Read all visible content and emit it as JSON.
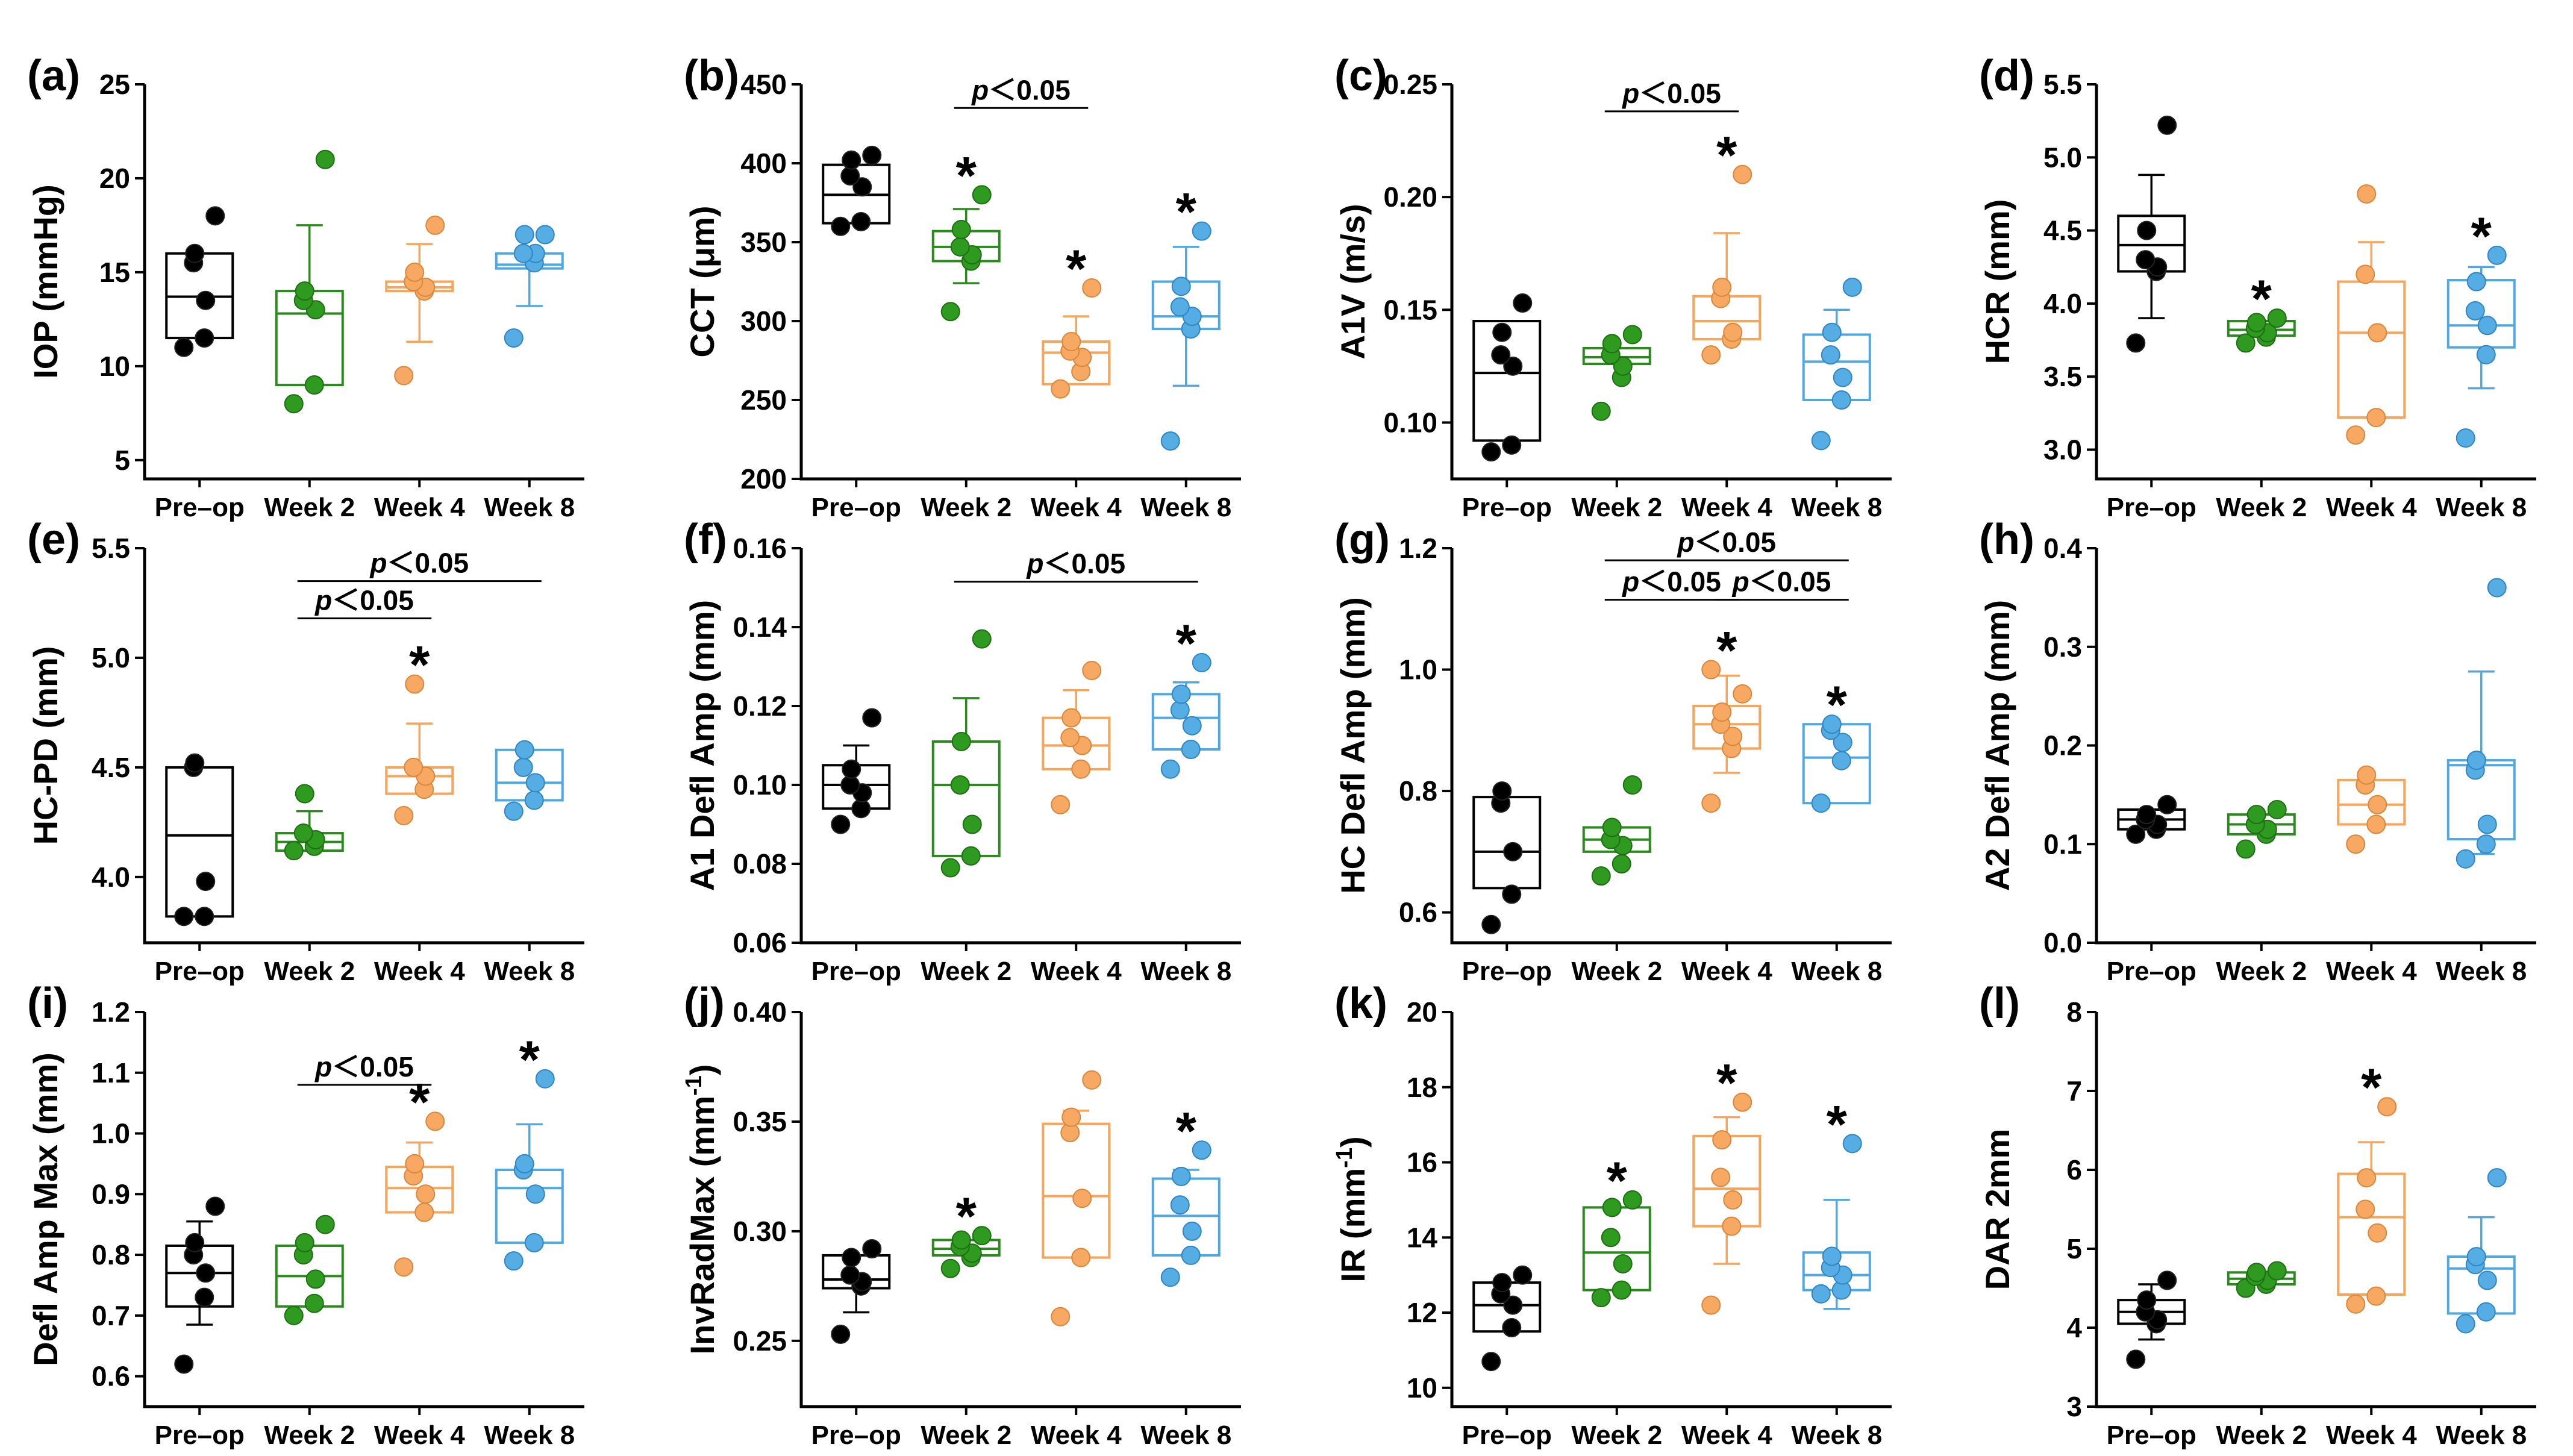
{
  "chart_data": [
    {
      "panel": "(a)",
      "type": "box",
      "ylabel": "IOP (mmHg)",
      "ylim": [
        4,
        25
      ],
      "yticks": [
        5,
        10,
        15,
        20,
        25
      ],
      "categories": [
        "Pre–op",
        "Week 2",
        "Week 4",
        "Week 8"
      ],
      "boxes": [
        {
          "q1": 11.5,
          "median": 13.7,
          "q3": 16.0,
          "wl": null,
          "wh": null
        },
        {
          "q1": 9.0,
          "median": 12.8,
          "q3": 14.0,
          "wl": null,
          "wh": 17.5
        },
        {
          "q1": 14.0,
          "median": 14.2,
          "q3": 14.5,
          "wl": 11.3,
          "wh": 16.5
        },
        {
          "q1": 15.2,
          "median": 15.4,
          "q3": 16.0,
          "wl": 13.2,
          "wh": null
        }
      ],
      "points": [
        [
          11,
          11.5,
          13.5,
          15.5,
          16,
          18
        ],
        [
          8,
          9,
          13,
          13.5,
          14,
          21
        ],
        [
          9.5,
          14,
          14.2,
          14.5,
          15,
          17.5
        ],
        [
          11.5,
          15.5,
          16,
          16,
          17,
          17
        ]
      ],
      "stars": [],
      "sig": []
    },
    {
      "panel": "(b)",
      "type": "box",
      "ylabel": "CCT (μm)",
      "ylim": [
        200,
        450
      ],
      "yticks": [
        200,
        250,
        300,
        350,
        400,
        450
      ],
      "categories": [
        "Pre–op",
        "Week 2",
        "Week 4",
        "Week 8"
      ],
      "boxes": [
        {
          "q1": 362,
          "median": 380,
          "q3": 399,
          "wl": null,
          "wh": null
        },
        {
          "q1": 338,
          "median": 347,
          "q3": 357,
          "wl": 324,
          "wh": 371
        },
        {
          "q1": 260,
          "median": 280,
          "q3": 287,
          "wl": null,
          "wh": 303
        },
        {
          "q1": 295,
          "median": 303,
          "q3": 325,
          "wl": 259,
          "wh": 347
        }
      ],
      "points": [
        [
          360,
          363,
          385,
          392,
          402,
          405
        ],
        [
          306,
          338,
          342,
          347,
          358,
          380
        ],
        [
          257,
          268,
          277,
          281,
          287,
          321
        ],
        [
          224,
          295,
          303,
          309,
          322,
          357
        ]
      ],
      "stars": [
        1,
        2,
        3
      ],
      "sig": [
        {
          "from": 1,
          "to": 2,
          "y": 435,
          "label": "p",
          "rest": "＜0.05"
        }
      ]
    },
    {
      "panel": "(c)",
      "type": "box",
      "ylabel": "A1V (m/s)",
      "ylim": [
        0.075,
        0.25
      ],
      "yticks": [
        0.1,
        0.15,
        0.2,
        0.25
      ],
      "categories": [
        "Pre–op",
        "Week 2",
        "Week 4",
        "Week 8"
      ],
      "boxes": [
        {
          "q1": 0.092,
          "median": 0.122,
          "q3": 0.145,
          "wl": null,
          "wh": null
        },
        {
          "q1": 0.126,
          "median": 0.129,
          "q3": 0.133,
          "wl": null,
          "wh": null
        },
        {
          "q1": 0.137,
          "median": 0.145,
          "q3": 0.156,
          "wl": null,
          "wh": 0.184
        },
        {
          "q1": 0.11,
          "median": 0.127,
          "q3": 0.139,
          "wl": null,
          "wh": 0.15
        }
      ],
      "points": [
        [
          0.087,
          0.09,
          0.125,
          0.13,
          0.14,
          0.153
        ],
        [
          0.105,
          0.12,
          0.125,
          0.13,
          0.135,
          0.139
        ],
        [
          0.13,
          0.137,
          0.14,
          0.155,
          0.16,
          0.21
        ],
        [
          0.092,
          0.11,
          0.12,
          0.13,
          0.14,
          0.16
        ]
      ],
      "stars": [
        2
      ],
      "sig": [
        {
          "from": 1,
          "to": 2,
          "y": 0.238,
          "label": "p",
          "rest": "＜0.05"
        }
      ]
    },
    {
      "panel": "(d)",
      "type": "box",
      "ylabel": "HCR (mm)",
      "ylim": [
        2.8,
        5.5
      ],
      "yticks": [
        3.0,
        3.5,
        4.0,
        4.5,
        5.0,
        5.5
      ],
      "categories": [
        "Pre–op",
        "Week 2",
        "Week 4",
        "Week 8"
      ],
      "boxes": [
        {
          "q1": 4.22,
          "median": 4.4,
          "q3": 4.6,
          "wl": 3.9,
          "wh": 4.88
        },
        {
          "q1": 3.78,
          "median": 3.82,
          "q3": 3.88,
          "wl": null,
          "wh": null
        },
        {
          "q1": 3.22,
          "median": 3.8,
          "q3": 4.15,
          "wl": null,
          "wh": 4.42
        },
        {
          "q1": 3.7,
          "median": 3.85,
          "q3": 4.16,
          "wl": 3.42,
          "wh": 4.25
        }
      ],
      "points": [
        [
          3.73,
          4.22,
          4.25,
          4.3,
          4.5,
          5.22
        ],
        [
          3.73,
          3.77,
          3.8,
          3.83,
          3.87,
          3.9
        ],
        [
          3.1,
          3.22,
          3.8,
          4.2,
          4.75
        ],
        [
          3.08,
          3.65,
          3.85,
          3.95,
          4.15,
          4.33
        ]
      ],
      "stars": [
        1,
        3
      ],
      "sig": []
    },
    {
      "panel": "(e)",
      "type": "box",
      "ylabel": "HC-PD (mm)",
      "ylim": [
        3.7,
        5.5
      ],
      "yticks": [
        4.0,
        4.5,
        5.0,
        5.5
      ],
      "categories": [
        "Pre–op",
        "Week 2",
        "Week 4",
        "Week 8"
      ],
      "boxes": [
        {
          "q1": 3.82,
          "median": 4.19,
          "q3": 4.5,
          "wl": null,
          "wh": null
        },
        {
          "q1": 4.12,
          "median": 4.16,
          "q3": 4.2,
          "wl": null,
          "wh": 4.3
        },
        {
          "q1": 4.38,
          "median": 4.46,
          "q3": 4.5,
          "wl": null,
          "wh": 4.7
        },
        {
          "q1": 4.35,
          "median": 4.43,
          "q3": 4.58,
          "wl": null,
          "wh": null
        }
      ],
      "points": [
        [
          3.82,
          3.82,
          3.98,
          4.5,
          4.52
        ],
        [
          4.12,
          4.14,
          4.17,
          4.2,
          4.38
        ],
        [
          4.28,
          4.4,
          4.46,
          4.5,
          4.88
        ],
        [
          4.3,
          4.35,
          4.43,
          4.5,
          4.58
        ]
      ],
      "stars": [
        2
      ],
      "sig": [
        {
          "from": 1,
          "to": 2,
          "y": 5.18,
          "label": "p",
          "rest": "＜0.05"
        },
        {
          "from": 1,
          "to": 3,
          "y": 5.35,
          "label": "p",
          "rest": "＜0.05"
        }
      ]
    },
    {
      "panel": "(f)",
      "type": "box",
      "ylabel": "A1 Defl Amp (mm)",
      "ylim": [
        0.06,
        0.16
      ],
      "yticks": [
        0.06,
        0.08,
        0.1,
        0.12,
        0.14,
        0.16
      ],
      "categories": [
        "Pre–op",
        "Week 2",
        "Week 4",
        "Week 8"
      ],
      "boxes": [
        {
          "q1": 0.094,
          "median": 0.1,
          "q3": 0.105,
          "wl": null,
          "wh": 0.11
        },
        {
          "q1": 0.082,
          "median": 0.1,
          "q3": 0.111,
          "wl": null,
          "wh": 0.122
        },
        {
          "q1": 0.104,
          "median": 0.11,
          "q3": 0.117,
          "wl": null,
          "wh": 0.124
        },
        {
          "q1": 0.109,
          "median": 0.117,
          "q3": 0.123,
          "wl": null,
          "wh": 0.126
        }
      ],
      "points": [
        [
          0.09,
          0.094,
          0.098,
          0.1,
          0.104,
          0.117
        ],
        [
          0.079,
          0.082,
          0.09,
          0.1,
          0.111,
          0.137
        ],
        [
          0.095,
          0.104,
          0.11,
          0.112,
          0.117,
          0.129
        ],
        [
          0.104,
          0.109,
          0.115,
          0.119,
          0.123,
          0.131
        ]
      ],
      "stars": [
        3
      ],
      "sig": [
        {
          "from": 1,
          "to": 3,
          "y": 0.1515,
          "label": "p",
          "rest": "＜0.05"
        }
      ]
    },
    {
      "panel": "(g)",
      "type": "box",
      "ylabel": "HC Defl Amp (mm)",
      "ylim": [
        0.55,
        1.2
      ],
      "yticks": [
        0.6,
        0.8,
        1.0,
        1.2
      ],
      "categories": [
        "Pre–op",
        "Week 2",
        "Week 4",
        "Week 8"
      ],
      "boxes": [
        {
          "q1": 0.64,
          "median": 0.7,
          "q3": 0.79,
          "wl": null,
          "wh": null
        },
        {
          "q1": 0.7,
          "median": 0.72,
          "q3": 0.74,
          "wl": null,
          "wh": null
        },
        {
          "q1": 0.87,
          "median": 0.91,
          "q3": 0.94,
          "wl": 0.83,
          "wh": 0.99
        },
        {
          "q1": 0.78,
          "median": 0.855,
          "q3": 0.91,
          "wl": null,
          "wh": null
        }
      ],
      "points": [
        [
          0.58,
          0.63,
          0.7,
          0.78,
          0.8
        ],
        [
          0.66,
          0.68,
          0.71,
          0.72,
          0.74,
          0.81
        ],
        [
          0.78,
          0.87,
          0.89,
          0.91,
          0.93,
          0.96,
          1.0
        ],
        [
          0.78,
          0.85,
          0.88,
          0.9,
          0.91
        ]
      ],
      "stars": [
        2,
        3
      ],
      "sig": [
        {
          "from": 1,
          "to": 2,
          "y": 1.115,
          "label": "p",
          "rest": "＜0.05"
        },
        {
          "from": 2,
          "to": 3,
          "y": 1.115,
          "label": "p",
          "rest": "＜0.05"
        },
        {
          "from": 1,
          "to": 3,
          "y": 1.18,
          "label": "p",
          "rest": "＜0.05"
        }
      ]
    },
    {
      "panel": "(h)",
      "type": "box",
      "ylabel": "A2 Defl Amp (mm)",
      "ylim": [
        0.0,
        0.4
      ],
      "yticks": [
        0.0,
        0.1,
        0.2,
        0.3,
        0.4
      ],
      "categories": [
        "Pre–op",
        "Week 2",
        "Week 4",
        "Week 8"
      ],
      "boxes": [
        {
          "q1": 0.115,
          "median": 0.125,
          "q3": 0.135,
          "wl": null,
          "wh": null
        },
        {
          "q1": 0.11,
          "median": 0.12,
          "q3": 0.13,
          "wl": null,
          "wh": null
        },
        {
          "q1": 0.12,
          "median": 0.14,
          "q3": 0.165,
          "wl": null,
          "wh": null
        },
        {
          "q1": 0.105,
          "median": 0.18,
          "q3": 0.185,
          "wl": 0.09,
          "wh": 0.275
        }
      ],
      "points": [
        [
          0.11,
          0.115,
          0.12,
          0.125,
          0.13,
          0.14
        ],
        [
          0.095,
          0.11,
          0.115,
          0.12,
          0.13,
          0.135
        ],
        [
          0.1,
          0.12,
          0.14,
          0.16,
          0.17
        ],
        [
          0.085,
          0.1,
          0.12,
          0.175,
          0.185,
          0.36
        ]
      ],
      "stars": [],
      "sig": []
    },
    {
      "panel": "(i)",
      "type": "box",
      "ylabel": "Defl Amp Max (mm)",
      "ylim": [
        0.55,
        1.2
      ],
      "yticks": [
        0.6,
        0.7,
        0.8,
        0.9,
        1.0,
        1.1,
        1.2
      ],
      "categories": [
        "Pre–op",
        "Week 2",
        "Week 4",
        "Week 8"
      ],
      "boxes": [
        {
          "q1": 0.715,
          "median": 0.77,
          "q3": 0.815,
          "wl": 0.685,
          "wh": 0.855
        },
        {
          "q1": 0.715,
          "median": 0.765,
          "q3": 0.815,
          "wl": null,
          "wh": null
        },
        {
          "q1": 0.87,
          "median": 0.91,
          "q3": 0.945,
          "wl": null,
          "wh": 0.985
        },
        {
          "q1": 0.82,
          "median": 0.91,
          "q3": 0.94,
          "wl": null,
          "wh": 1.015
        }
      ],
      "points": [
        [
          0.62,
          0.73,
          0.77,
          0.8,
          0.82,
          0.88
        ],
        [
          0.7,
          0.72,
          0.76,
          0.8,
          0.82,
          0.85
        ],
        [
          0.78,
          0.87,
          0.9,
          0.93,
          0.95,
          1.02
        ],
        [
          0.79,
          0.82,
          0.9,
          0.94,
          0.95,
          1.09
        ]
      ],
      "stars": [
        2,
        3
      ],
      "sig": [
        {
          "from": 1,
          "to": 2,
          "y": 1.08,
          "label": "p",
          "rest": "＜0.05"
        }
      ]
    },
    {
      "panel": "(j)",
      "type": "box",
      "ylabel": "InvRadMax (mm⁻¹)",
      "ylim": [
        0.22,
        0.4
      ],
      "yticks": [
        0.25,
        0.3,
        0.35,
        0.4
      ],
      "categories": [
        "Pre–op",
        "Week 2",
        "Week 4",
        "Week 8"
      ],
      "boxes": [
        {
          "q1": 0.274,
          "median": 0.278,
          "q3": 0.289,
          "wl": 0.263,
          "wh": null
        },
        {
          "q1": 0.289,
          "median": 0.292,
          "q3": 0.296,
          "wl": null,
          "wh": null
        },
        {
          "q1": 0.288,
          "median": 0.316,
          "q3": 0.349,
          "wl": null,
          "wh": 0.355
        },
        {
          "q1": 0.289,
          "median": 0.307,
          "q3": 0.324,
          "wl": null,
          "wh": 0.328
        }
      ],
      "points": [
        [
          0.253,
          0.275,
          0.277,
          0.28,
          0.288,
          0.292
        ],
        [
          0.283,
          0.288,
          0.29,
          0.293,
          0.296,
          0.298
        ],
        [
          0.261,
          0.288,
          0.315,
          0.345,
          0.352,
          0.369
        ],
        [
          0.279,
          0.289,
          0.3,
          0.312,
          0.325,
          0.337
        ]
      ],
      "stars": [
        1,
        3
      ],
      "sig": []
    },
    {
      "panel": "(k)",
      "type": "box",
      "ylabel": "IR (mm⁻¹)",
      "ylim": [
        9.5,
        20
      ],
      "yticks": [
        10,
        12,
        14,
        16,
        18,
        20
      ],
      "categories": [
        "Pre–op",
        "Week 2",
        "Week 4",
        "Week 8"
      ],
      "boxes": [
        {
          "q1": 11.5,
          "median": 12.2,
          "q3": 12.8,
          "wl": null,
          "wh": null
        },
        {
          "q1": 12.6,
          "median": 13.6,
          "q3": 14.8,
          "wl": null,
          "wh": null
        },
        {
          "q1": 14.3,
          "median": 15.3,
          "q3": 16.7,
          "wl": 13.3,
          "wh": 17.2
        },
        {
          "q1": 12.6,
          "median": 13.0,
          "q3": 13.6,
          "wl": 12.1,
          "wh": 15.0
        }
      ],
      "points": [
        [
          10.7,
          11.6,
          12.2,
          12.5,
          12.8,
          13.0
        ],
        [
          12.4,
          12.6,
          13.3,
          14.0,
          14.8,
          15.0
        ],
        [
          12.2,
          14.3,
          15.0,
          15.6,
          16.6,
          17.6
        ],
        [
          12.5,
          12.6,
          13.0,
          13.2,
          13.5,
          16.5
        ]
      ],
      "stars": [
        1,
        2,
        3
      ],
      "sig": []
    },
    {
      "panel": "(l)",
      "type": "box",
      "ylabel": "DAR 2mm",
      "ylim": [
        3,
        8
      ],
      "yticks": [
        3,
        4,
        5,
        6,
        7,
        8
      ],
      "categories": [
        "Pre–op",
        "Week 2",
        "Week 4",
        "Week 8"
      ],
      "boxes": [
        {
          "q1": 4.05,
          "median": 4.2,
          "q3": 4.35,
          "wl": 3.85,
          "wh": 4.55
        },
        {
          "q1": 4.55,
          "median": 4.62,
          "q3": 4.7,
          "wl": null,
          "wh": null
        },
        {
          "q1": 4.42,
          "median": 5.4,
          "q3": 5.95,
          "wl": null,
          "wh": 6.35
        },
        {
          "q1": 4.18,
          "median": 4.75,
          "q3": 4.9,
          "wl": null,
          "wh": 5.4
        }
      ],
      "points": [
        [
          3.6,
          4.05,
          4.1,
          4.2,
          4.35,
          4.6
        ],
        [
          4.5,
          4.55,
          4.6,
          4.65,
          4.7,
          4.72
        ],
        [
          4.3,
          4.4,
          5.2,
          5.5,
          5.9,
          6.8
        ],
        [
          4.05,
          4.2,
          4.6,
          4.8,
          4.9,
          5.9
        ]
      ],
      "stars": [
        2
      ],
      "sig": []
    }
  ],
  "colors": {
    "series": [
      "#000000",
      "#2b8a1e",
      "#f6a55a",
      "#4fa8e0"
    ]
  }
}
